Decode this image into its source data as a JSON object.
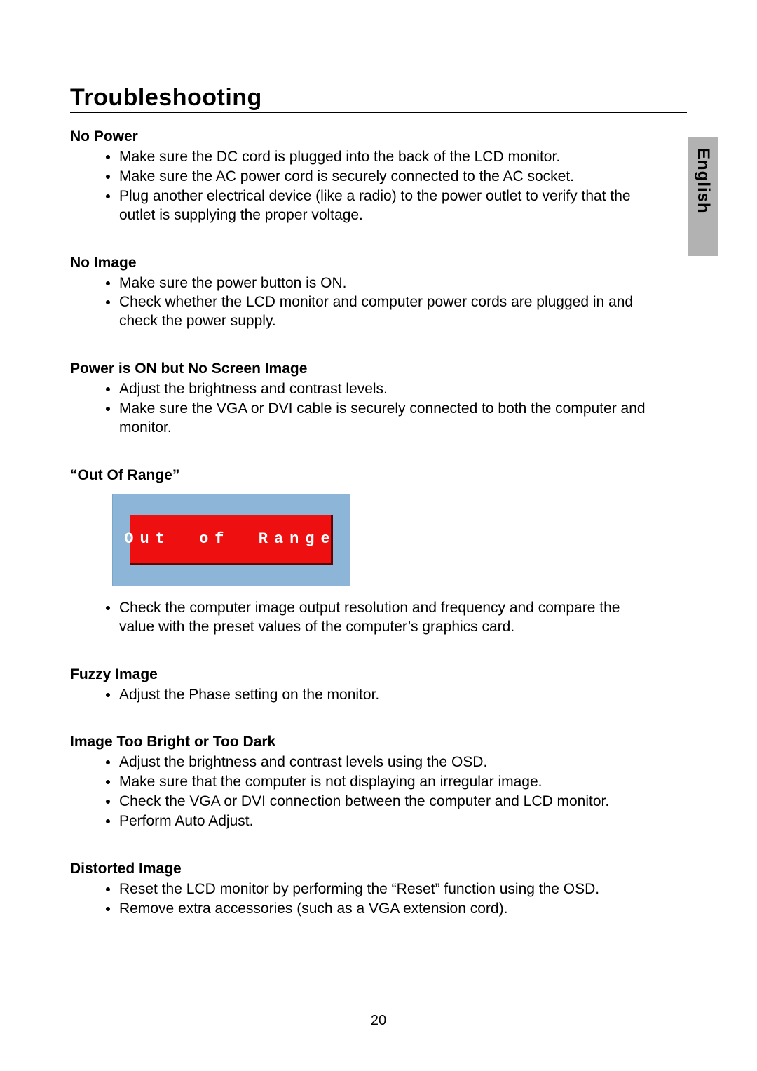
{
  "page": {
    "title": "Troubleshooting",
    "language_tab": "English",
    "page_number": "20"
  },
  "sections": [
    {
      "heading": "No Power",
      "bullets": [
        "Make sure the DC cord is plugged into the back of the LCD monitor.",
        "Make sure the AC power cord is securely connected to the AC socket.",
        "Plug another electrical device (like a radio) to the power outlet to verify that the outlet is supplying the proper voltage."
      ]
    },
    {
      "heading": "No Image",
      "bullets": [
        "Make sure the power button is ON.",
        "Check whether the LCD monitor and computer power cords are plugged in and check the power supply."
      ]
    },
    {
      "heading": "Power is ON but No Screen Image",
      "bullets": [
        "Adjust the brightness and contrast levels.",
        "Make sure the VGA or DVI cable is securely connected to both the computer and monitor."
      ]
    },
    {
      "heading": "“Out Of Range”",
      "image": {
        "text": "Out of Range",
        "outer_bg": "#8db5d8",
        "inner_bg": "#ee1010",
        "text_color": "#ffffff",
        "font": "monospace"
      },
      "bullets": [
        "Check the computer image output resolution and frequency and compare the value with the preset values of the computer’s graphics card."
      ]
    },
    {
      "heading": "Fuzzy Image",
      "bullets": [
        "Adjust the Phase setting on the monitor."
      ]
    },
    {
      "heading": "Image Too Bright or Too Dark",
      "bullets": [
        "Adjust the brightness and contrast levels using the OSD.",
        "Make sure that the computer is not displaying an irregular image.",
        "Check the VGA or DVI connection between the computer and LCD monitor.",
        "Perform Auto Adjust."
      ]
    },
    {
      "heading": "Distorted Image",
      "bullets": [
        "Reset the LCD monitor by performing the “Reset” function using the OSD.",
        "Remove extra accessories (such as a VGA extension cord)."
      ]
    }
  ]
}
